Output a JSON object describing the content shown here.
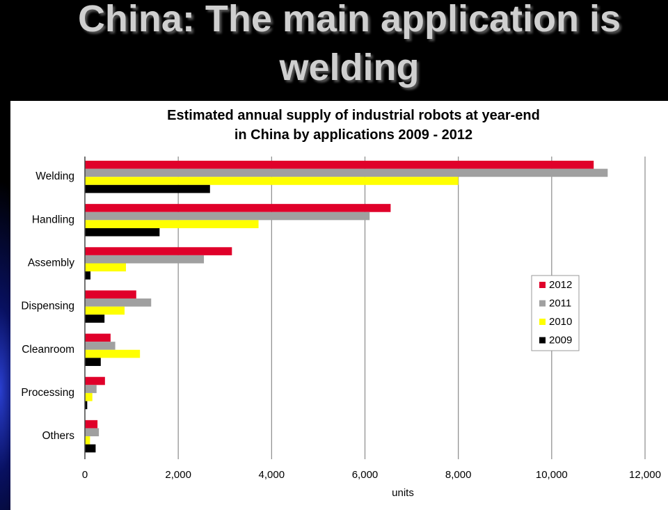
{
  "slide": {
    "title_line_1": "China: The main application is",
    "title_line_2": "welding"
  },
  "chart_data": {
    "type": "bar",
    "orientation": "horizontal",
    "title": "Estimated annual supply of industrial robots at year-end\nin China by applications 2009 - 2012",
    "title_lines": [
      "Estimated annual supply of industrial robots at year-end",
      "in China by applications 2009 - 2012"
    ],
    "categories": [
      "Welding",
      "Handling",
      "Assembly",
      "Dispensing",
      "Cleanroom",
      "Processing",
      "Others"
    ],
    "series": [
      {
        "name": "2012",
        "color": "#e0002a",
        "values": [
          10900,
          6550,
          3150,
          1100,
          550,
          430,
          270
        ]
      },
      {
        "name": "2011",
        "color": "#a0a0a0",
        "values": [
          11200,
          6100,
          2550,
          1420,
          650,
          250,
          300
        ]
      },
      {
        "name": "2010",
        "color": "#ffff00",
        "values": [
          8000,
          3720,
          880,
          850,
          1180,
          160,
          110
        ]
      },
      {
        "name": "2009",
        "color": "#000000",
        "values": [
          2680,
          1600,
          120,
          420,
          340,
          50,
          230
        ]
      }
    ],
    "xlabel": "units",
    "ylabel": "",
    "xlim": [
      0,
      12000
    ],
    "xticks": [
      0,
      2000,
      4000,
      6000,
      8000,
      10000,
      12000
    ],
    "xtick_labels": [
      "0",
      "2,000",
      "4,000",
      "6,000",
      "8,000",
      "10,000",
      "12,000"
    ],
    "grid": "vertical",
    "legend": "right",
    "legend_entries": [
      "2012",
      "2011",
      "2010",
      "2009"
    ]
  }
}
